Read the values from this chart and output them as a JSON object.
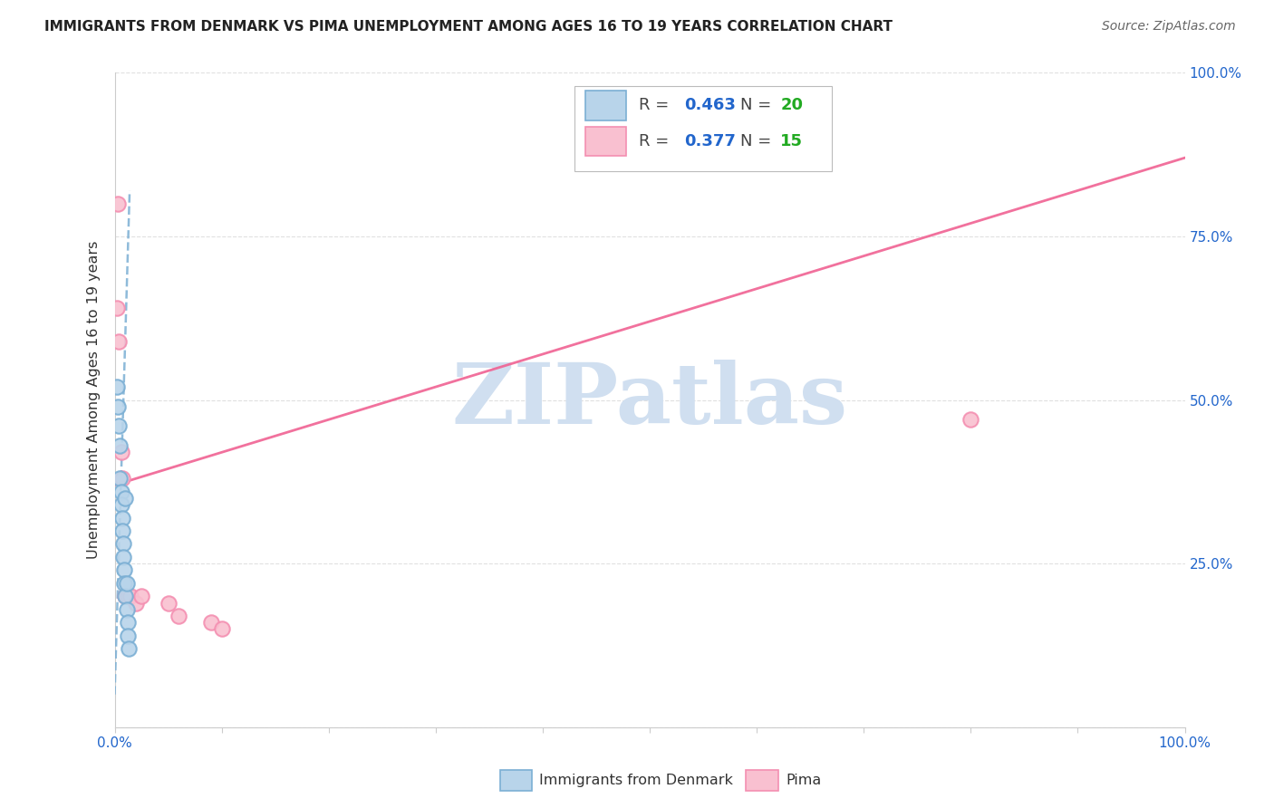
{
  "title": "IMMIGRANTS FROM DENMARK VS PIMA UNEMPLOYMENT AMONG AGES 16 TO 19 YEARS CORRELATION CHART",
  "source": "Source: ZipAtlas.com",
  "ylabel": "Unemployment Among Ages 16 to 19 years",
  "xlim": [
    0,
    1.0
  ],
  "ylim": [
    0,
    1.0
  ],
  "denmark_x": [
    0.002,
    0.003,
    0.004,
    0.005,
    0.005,
    0.006,
    0.006,
    0.007,
    0.007,
    0.008,
    0.008,
    0.009,
    0.009,
    0.01,
    0.01,
    0.011,
    0.011,
    0.012,
    0.012,
    0.013
  ],
  "denmark_y": [
    0.52,
    0.49,
    0.46,
    0.43,
    0.38,
    0.36,
    0.34,
    0.32,
    0.3,
    0.28,
    0.26,
    0.24,
    0.22,
    0.2,
    0.35,
    0.18,
    0.22,
    0.16,
    0.14,
    0.12
  ],
  "pima_x": [
    0.003,
    0.004,
    0.006,
    0.007,
    0.01,
    0.012,
    0.015,
    0.02,
    0.025,
    0.05,
    0.06,
    0.09,
    0.8,
    0.1,
    0.002
  ],
  "pima_y": [
    0.8,
    0.59,
    0.42,
    0.38,
    0.2,
    0.2,
    0.2,
    0.19,
    0.2,
    0.19,
    0.17,
    0.16,
    0.47,
    0.15,
    0.64
  ],
  "denmark_R": 0.463,
  "denmark_N": 20,
  "pima_R": 0.377,
  "pima_N": 15,
  "denmark_color": "#7bafd4",
  "pima_color": "#f48fb1",
  "denmark_face": "#b8d4ea",
  "pima_face": "#f9c0d0",
  "denmark_line_color": "#7bafd4",
  "pima_line_color": "#f06292",
  "background_color": "#ffffff",
  "grid_color": "#e0e0e0",
  "watermark": "ZIPatlas",
  "watermark_color": "#d0dff0",
  "legend_R_color": "#2266cc",
  "legend_N_color": "#22aa22",
  "dk_line_m": 55.0,
  "dk_line_b": 0.05,
  "pima_line_m": 0.5,
  "pima_line_b": 0.37
}
